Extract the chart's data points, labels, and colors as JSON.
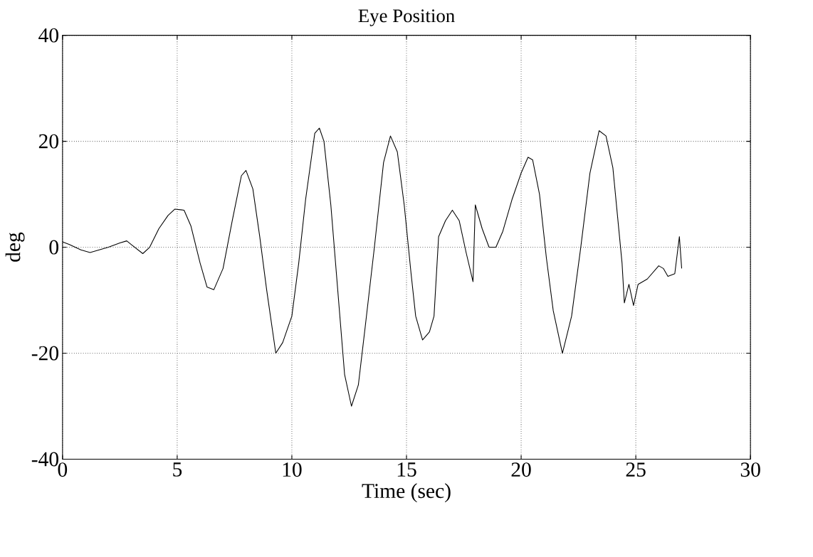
{
  "chart_data": {
    "type": "line",
    "title": "Eye Position",
    "xlabel": "Time (sec)",
    "ylabel": "deg",
    "xlim": [
      0,
      30
    ],
    "ylim": [
      -40,
      40
    ],
    "xticks": [
      0,
      5,
      10,
      15,
      20,
      25,
      30
    ],
    "yticks": [
      -40,
      -20,
      0,
      20,
      40
    ],
    "grid": true,
    "series": [
      {
        "color": "#000000",
        "x": [
          0,
          0.3,
          0.8,
          1.2,
          1.6,
          2.0,
          2.5,
          2.8,
          3.0,
          3.5,
          3.8,
          4.2,
          4.6,
          4.9,
          5.3,
          5.6,
          6.0,
          6.3,
          6.6,
          7.0,
          7.4,
          7.8,
          8.0,
          8.3,
          8.6,
          8.9,
          9.3,
          9.6,
          10.0,
          10.3,
          10.6,
          11.0,
          11.2,
          11.4,
          11.7,
          12.0,
          12.3,
          12.6,
          12.9,
          13.2,
          13.6,
          14.0,
          14.3,
          14.6,
          14.9,
          15.2,
          15.4,
          15.7,
          16.0,
          16.2,
          16.4,
          16.7,
          17.0,
          17.3,
          17.6,
          17.9,
          18.0,
          18.3,
          18.6,
          18.9,
          19.2,
          19.6,
          20.0,
          20.3,
          20.5,
          20.8,
          21.1,
          21.4,
          21.8,
          22.2,
          22.6,
          23.0,
          23.4,
          23.7,
          24.0,
          24.2,
          24.4,
          24.5,
          24.7,
          24.9,
          25.1,
          25.5,
          26.0,
          26.2,
          26.4,
          26.7,
          26.9,
          27.0
        ],
        "values": [
          1,
          0.5,
          -0.5,
          -1,
          -0.5,
          0,
          0.8,
          1.2,
          0.5,
          -1.2,
          0,
          3.5,
          6,
          7.2,
          7,
          4,
          -3,
          -7.5,
          -8,
          -4,
          5,
          13.5,
          14.5,
          11,
          2,
          -8,
          -20,
          -18,
          -13,
          -3,
          9,
          21.5,
          22.5,
          20,
          8,
          -8,
          -24,
          -30,
          -26,
          -15,
          0,
          16,
          21,
          18,
          8,
          -5,
          -13,
          -17.5,
          -16,
          -13,
          2,
          5,
          7,
          5,
          -1,
          -6.5,
          8,
          3.5,
          0,
          0,
          3,
          9,
          14,
          17,
          16.5,
          10,
          -2,
          -12,
          -20,
          -13,
          0,
          14,
          22,
          21,
          15,
          6,
          -3,
          -10.5,
          -7,
          -11,
          -7,
          -6,
          -3.5,
          -4,
          -5.5,
          -5,
          2,
          -4
        ]
      }
    ]
  }
}
